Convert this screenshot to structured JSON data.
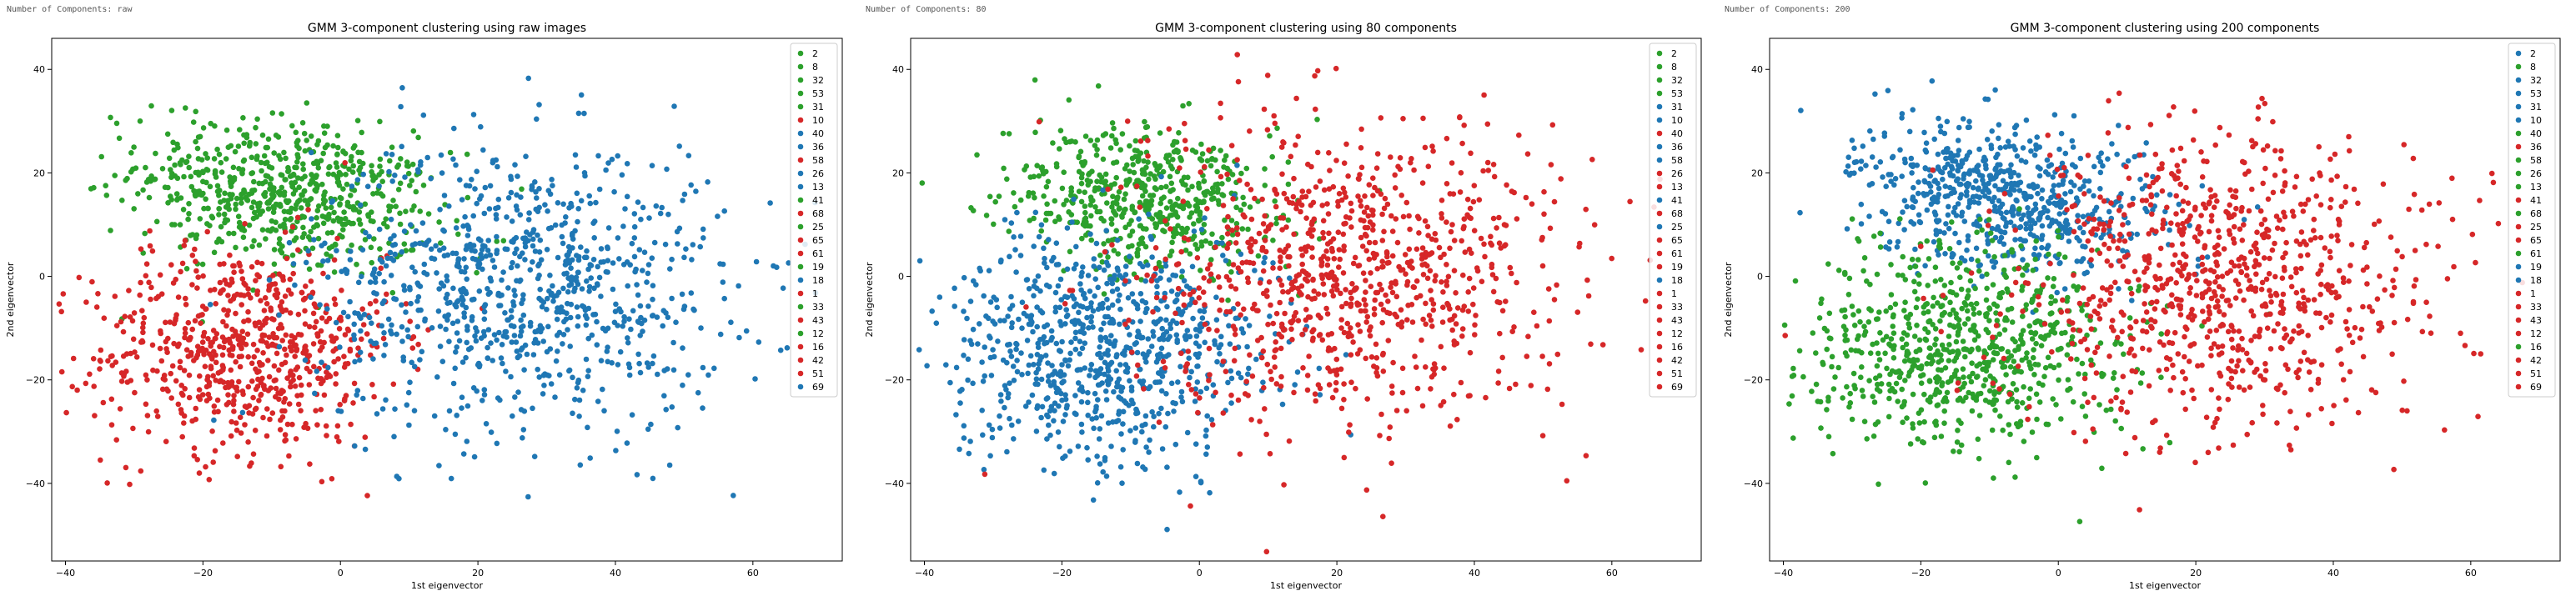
{
  "colors": {
    "blue": "#1f77b4",
    "green": "#2ca02c",
    "red": "#d62728"
  },
  "legend_labels": [
    "2",
    "8",
    "32",
    "53",
    "31",
    "10",
    "40",
    "36",
    "58",
    "26",
    "13",
    "41",
    "68",
    "25",
    "65",
    "61",
    "19",
    "18",
    "1",
    "33",
    "43",
    "12",
    "16",
    "42",
    "51",
    "69"
  ],
  "chart_data": [
    {
      "type": "scatter",
      "header_label": "Number of Components:",
      "header_value": "raw",
      "title": "GMM 3-component clustering using raw images",
      "xlabel": "1st eigenvector",
      "ylabel": "2nd eigenvector",
      "xlim": [
        -42,
        73
      ],
      "ylim": [
        -55,
        46
      ],
      "xticks": [
        -40,
        -20,
        0,
        20,
        40,
        60
      ],
      "yticks": [
        -40,
        -20,
        0,
        20,
        40
      ],
      "legend_position": "top-right",
      "legend_colors": [
        "green",
        "green",
        "green",
        "green",
        "green",
        "red",
        "blue",
        "blue",
        "red",
        "blue",
        "blue",
        "green",
        "red",
        "green",
        "red",
        "red",
        "green",
        "blue",
        "red",
        "green",
        "red",
        "green",
        "red",
        "red",
        "red",
        "blue"
      ],
      "clusters": [
        {
          "color": "green",
          "cx": -8,
          "cy": 16,
          "sx": 11,
          "sy": 7,
          "n": 650,
          "rot": -0.25
        },
        {
          "color": "red",
          "cx": -14,
          "cy": -14,
          "sx": 11,
          "sy": 10,
          "n": 700,
          "rot": 0.1
        },
        {
          "color": "blue",
          "cx": 26,
          "cy": -2,
          "sx": 15,
          "sy": 14,
          "n": 900,
          "rot": 0
        }
      ]
    },
    {
      "type": "scatter",
      "header_label": "Number of Components:",
      "header_value": "80",
      "title": "GMM 3-component clustering using 80 components",
      "xlabel": "1st eigenvector",
      "ylabel": "2nd eigenvector",
      "xlim": [
        -42,
        73
      ],
      "ylim": [
        -55,
        46
      ],
      "xticks": [
        -40,
        -20,
        0,
        20,
        40,
        60
      ],
      "yticks": [
        -40,
        -20,
        0,
        20,
        40
      ],
      "legend_position": "top-right",
      "legend_colors": [
        "green",
        "green",
        "green",
        "green",
        "blue",
        "blue",
        "red",
        "blue",
        "blue",
        "red",
        "red",
        "blue",
        "red",
        "blue",
        "red",
        "red",
        "red",
        "blue",
        "red",
        "red",
        "red",
        "red",
        "red",
        "red",
        "red",
        "red"
      ],
      "clusters": [
        {
          "color": "green",
          "cx": -8,
          "cy": 15,
          "sx": 10,
          "sy": 7,
          "n": 550,
          "rot": -0.25
        },
        {
          "color": "blue",
          "cx": -14,
          "cy": -14,
          "sx": 12,
          "sy": 11,
          "n": 800,
          "rot": 0.1
        },
        {
          "color": "red",
          "cx": 22,
          "cy": 0,
          "sx": 15,
          "sy": 15,
          "n": 900,
          "rot": 0
        }
      ]
    },
    {
      "type": "scatter",
      "header_label": "Number of Components:",
      "header_value": "200",
      "title": "GMM 3-component clustering using 200 components",
      "xlabel": "1st eigenvector",
      "ylabel": "2nd eigenvector",
      "xlim": [
        -42,
        73
      ],
      "ylim": [
        -55,
        46
      ],
      "xticks": [
        -40,
        -20,
        0,
        20,
        40,
        60
      ],
      "yticks": [
        -40,
        -20,
        0,
        20,
        40
      ],
      "legend_position": "top-right",
      "legend_colors": [
        "blue",
        "green",
        "blue",
        "blue",
        "blue",
        "blue",
        "green",
        "red",
        "green",
        "green",
        "green",
        "red",
        "green",
        "red",
        "red",
        "green",
        "blue",
        "blue",
        "red",
        "red",
        "red",
        "red",
        "green",
        "red",
        "red",
        "red"
      ],
      "clusters": [
        {
          "color": "blue",
          "cx": -8,
          "cy": 15,
          "sx": 11,
          "sy": 7,
          "n": 650,
          "rot": -0.25
        },
        {
          "color": "green",
          "cx": -14,
          "cy": -14,
          "sx": 11,
          "sy": 10,
          "n": 750,
          "rot": 0.1
        },
        {
          "color": "red",
          "cx": 24,
          "cy": -1,
          "sx": 15,
          "sy": 14,
          "n": 850,
          "rot": 0
        }
      ]
    }
  ]
}
